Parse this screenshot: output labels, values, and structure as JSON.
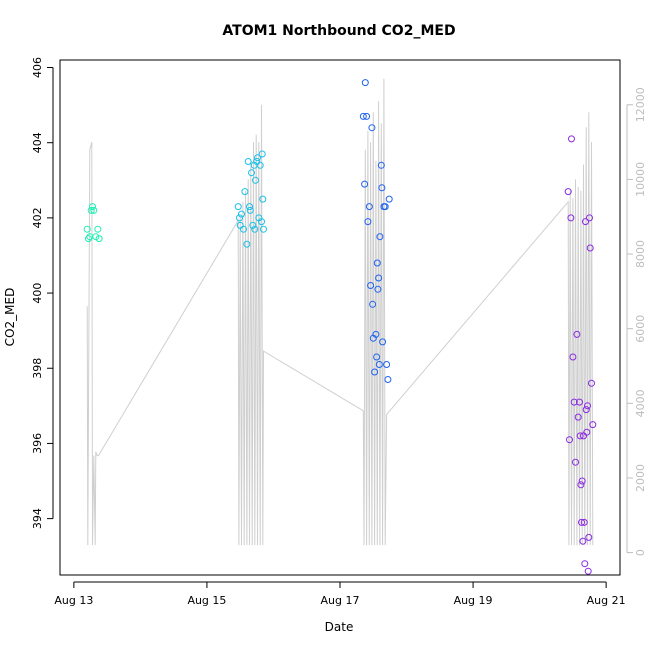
{
  "chart_data": {
    "type": "scatter",
    "title": "ATOM1 Northbound CO2_MED",
    "xlabel": "Date",
    "ylabel": "CO2_MED",
    "x_axis": {
      "ticks": [
        "Aug 13",
        "Aug 15",
        "Aug 17",
        "Aug 19",
        "Aug 21"
      ],
      "range": [
        "Aug 12 19:00",
        "Aug 21 05:00"
      ]
    },
    "y_axis_left": {
      "ticks": [
        394,
        396,
        398,
        400,
        402,
        404,
        406
      ],
      "range": [
        392.5,
        406.2
      ]
    },
    "y_axis_right": {
      "ticks": [
        0,
        2000,
        4000,
        6000,
        8000,
        10000,
        12000
      ],
      "range": [
        -600,
        13200
      ],
      "color": "#bdbdbd"
    },
    "grid": false,
    "line_series": {
      "axis": "right",
      "color": "#cfcfcf",
      "x": [
        13.2,
        13.21,
        13.24,
        13.27,
        13.28,
        13.3,
        13.32,
        13.33,
        13.35,
        13.37,
        15.47,
        15.48,
        15.5,
        15.52,
        15.54,
        15.56,
        15.58,
        15.6,
        15.62,
        15.64,
        15.66,
        15.68,
        15.7,
        15.72,
        15.74,
        15.76,
        15.78,
        15.8,
        15.82,
        15.84,
        15.85,
        17.35,
        17.36,
        17.38,
        17.4,
        17.42,
        17.44,
        17.46,
        17.48,
        17.5,
        17.52,
        17.54,
        17.56,
        17.58,
        17.6,
        17.62,
        17.64,
        17.66,
        17.68,
        17.7,
        20.43,
        20.44,
        20.46,
        20.48,
        20.5,
        20.52,
        20.54,
        20.56,
        20.58,
        20.6,
        20.62,
        20.64,
        20.66,
        20.68,
        20.7,
        20.72,
        20.74,
        20.76,
        20.78,
        20.8
      ],
      "y": [
        6600,
        200,
        10800,
        11000,
        200,
        2600,
        200,
        2700,
        2600,
        2600,
        8900,
        200,
        9000,
        200,
        9400,
        200,
        9700,
        200,
        10000,
        200,
        10500,
        200,
        11000,
        200,
        11200,
        200,
        11000,
        200,
        12000,
        200,
        5400,
        3800,
        200,
        10800,
        200,
        11300,
        200,
        11000,
        200,
        11800,
        200,
        10500,
        200,
        12100,
        200,
        11500,
        200,
        12700,
        200,
        3700,
        9400,
        200,
        9700,
        200,
        9500,
        200,
        10000,
        200,
        9800,
        200,
        9700,
        200,
        10400,
        200,
        11400,
        200,
        11800,
        200,
        11000,
        200
      ]
    },
    "series": [
      {
        "color": "#1ef0b4",
        "x": [
          13.2,
          13.22,
          13.24,
          13.26,
          13.28,
          13.3,
          13.33,
          13.36,
          13.38
        ],
        "y": [
          401.7,
          401.45,
          401.5,
          402.2,
          402.3,
          402.2,
          401.5,
          401.7,
          401.45
        ]
      },
      {
        "color": "#19c0e8",
        "x": [
          15.47,
          15.49,
          15.5,
          15.52,
          15.55,
          15.57,
          15.6,
          15.62,
          15.64,
          15.65,
          15.67,
          15.69,
          15.71,
          15.72,
          15.73,
          15.75,
          15.76,
          15.78,
          15.8,
          15.82,
          15.83,
          15.84,
          15.85
        ],
        "y": [
          402.3,
          402.0,
          401.8,
          402.1,
          401.7,
          402.7,
          401.3,
          403.5,
          402.3,
          402.2,
          403.2,
          401.8,
          403.4,
          401.7,
          403.0,
          403.5,
          403.6,
          402.0,
          403.4,
          401.9,
          403.7,
          402.5,
          401.7
        ]
      },
      {
        "color": "#1f63f0",
        "x": [
          17.35,
          17.37,
          17.38,
          17.4,
          17.42,
          17.44,
          17.46,
          17.48,
          17.49,
          17.5,
          17.52,
          17.54,
          17.55,
          17.56,
          17.57,
          17.58,
          17.59,
          17.6,
          17.62,
          17.63,
          17.64,
          17.66,
          17.68,
          17.7,
          17.72,
          17.74
        ],
        "y": [
          404.7,
          402.9,
          405.6,
          404.7,
          401.9,
          402.3,
          400.2,
          404.4,
          399.7,
          398.8,
          397.9,
          398.9,
          398.3,
          400.8,
          400.1,
          400.4,
          398.1,
          401.5,
          403.4,
          402.8,
          398.7,
          402.3,
          402.3,
          398.1,
          397.7,
          402.5
        ]
      },
      {
        "color": "#8a2be2",
        "x": [
          20.43,
          20.45,
          20.47,
          20.48,
          20.5,
          20.52,
          20.54,
          20.56,
          20.58,
          20.6,
          20.61,
          20.62,
          20.63,
          20.64,
          20.65,
          20.66,
          20.67,
          20.68,
          20.69,
          20.7,
          20.71,
          20.72,
          20.73,
          20.74,
          20.75,
          20.76,
          20.78,
          20.8
        ],
        "y": [
          402.7,
          396.1,
          402.0,
          404.1,
          398.3,
          397.1,
          395.5,
          398.9,
          396.7,
          397.1,
          396.2,
          394.9,
          393.9,
          395.0,
          393.4,
          396.2,
          393.9,
          392.8,
          401.9,
          396.9,
          396.3,
          397.0,
          392.6,
          393.5,
          402.0,
          401.2,
          397.6,
          396.5
        ]
      }
    ]
  }
}
